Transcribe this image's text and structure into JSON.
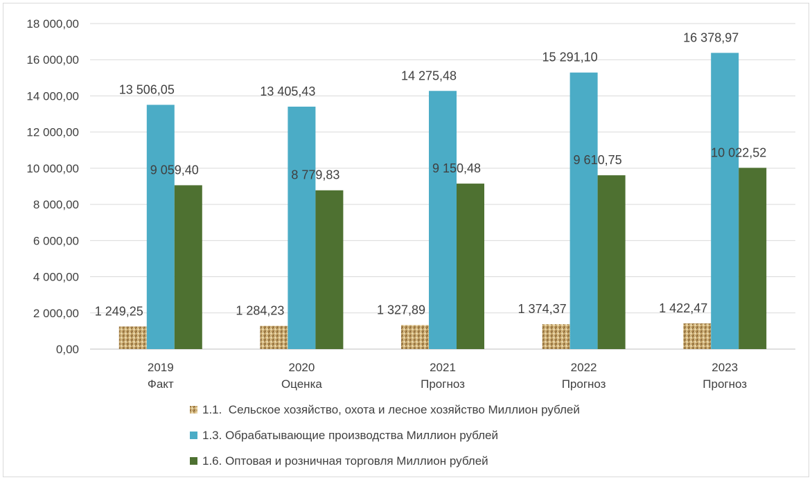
{
  "chart_data": {
    "type": "bar",
    "categories": [
      [
        "2019",
        "Факт"
      ],
      [
        "2020",
        "Оценка"
      ],
      [
        "2021",
        "Прогноз"
      ],
      [
        "2022",
        "Прогноз"
      ],
      [
        "2023",
        "Прогноз"
      ]
    ],
    "ylim": [
      0,
      18000
    ],
    "yticks": [
      0,
      2000,
      4000,
      6000,
      8000,
      10000,
      12000,
      14000,
      16000,
      18000
    ],
    "ytick_labels": [
      "0,00",
      "2 000,00",
      "4 000,00",
      "6 000,00",
      "8 000,00",
      "10 000,00",
      "12 000,00",
      "14 000,00",
      "16 000,00",
      "18 000,00"
    ],
    "grid": true,
    "legend_position": "bottom",
    "series": [
      {
        "name": "1.1.  Сельское хозяйство, охота и лесное хозяйство Миллион рублей",
        "color": "#c9a96e",
        "pattern": "burlap",
        "values": [
          1249.25,
          1284.23,
          1327.89,
          1374.37,
          1422.47
        ],
        "labels": [
          "1 249,25",
          "1 284,23",
          "1 327,89",
          "1 374,37",
          "1 422,47"
        ]
      },
      {
        "name": "1.3. Обрабатывающие производства Миллион рублей",
        "color": "#4bacc6",
        "values": [
          13506.05,
          13405.43,
          14275.48,
          15291.1,
          16378.97
        ],
        "labels": [
          "13 506,05",
          "13 405,43",
          "14 275,48",
          "15 291,10",
          "16 378,97"
        ]
      },
      {
        "name": "1.6. Оптовая и розничная торговля Миллион рублей",
        "color": "#4e7131",
        "values": [
          9059.4,
          8779.83,
          9150.48,
          9610.75,
          10022.52
        ],
        "labels": [
          "9 059,40",
          "8 779,83",
          "9 150,48",
          "9 610,75",
          "10 022,52"
        ]
      }
    ]
  }
}
